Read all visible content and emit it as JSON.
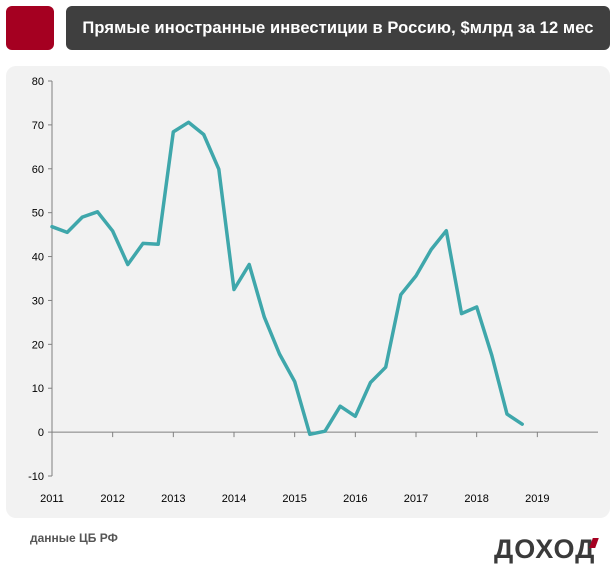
{
  "header": {
    "title": "Прямые иностранные инвестиции в Россию, $млрд за 12 мес"
  },
  "footer": {
    "source": "данные ЦБ РФ",
    "brand": "ДОХОД"
  },
  "colors": {
    "accent": "#a50021",
    "title_bg": "#3f3f3f",
    "line": "#3fa7ab",
    "axis": "#808080",
    "panel": "#f2f2f2"
  },
  "chart_data": {
    "type": "line",
    "title": "Прямые иностранные инвестиции в Россию, $млрд за 12 мес",
    "xlabel": "",
    "ylabel": "",
    "ylim": [
      -10,
      80
    ],
    "yticks": [
      -10,
      0,
      10,
      20,
      30,
      40,
      50,
      60,
      70,
      80
    ],
    "xlim": [
      2011,
      2020
    ],
    "xticks": [
      "2011",
      "2012",
      "2013",
      "2014",
      "2015",
      "2016",
      "2017",
      "2018",
      "2019"
    ],
    "grid": false,
    "legend": "none",
    "series": [
      {
        "x": [
          2011.0,
          2011.25,
          2011.5,
          2011.75,
          2012.0,
          2012.25,
          2012.5,
          2012.75,
          2013.0,
          2013.25,
          2013.5,
          2013.75,
          2014.0,
          2014.25,
          2014.5,
          2014.75,
          2015.0,
          2015.25,
          2015.5,
          2015.75,
          2016.0,
          2016.25,
          2016.5,
          2016.75,
          2017.0,
          2017.25,
          2017.5,
          2017.75,
          2018.0,
          2018.25,
          2018.5,
          2018.75
        ],
        "values": [
          46.8,
          45.5,
          49.0,
          50.2,
          45.8,
          38.2,
          43.0,
          42.8,
          68.4,
          70.6,
          67.8,
          59.9,
          32.5,
          38.2,
          26.2,
          17.8,
          11.5,
          -0.5,
          0.2,
          5.9,
          3.6,
          11.3,
          14.8,
          31.3,
          35.6,
          41.6,
          45.9,
          27.0,
          28.5,
          17.5,
          4.1,
          1.8
        ]
      }
    ]
  }
}
